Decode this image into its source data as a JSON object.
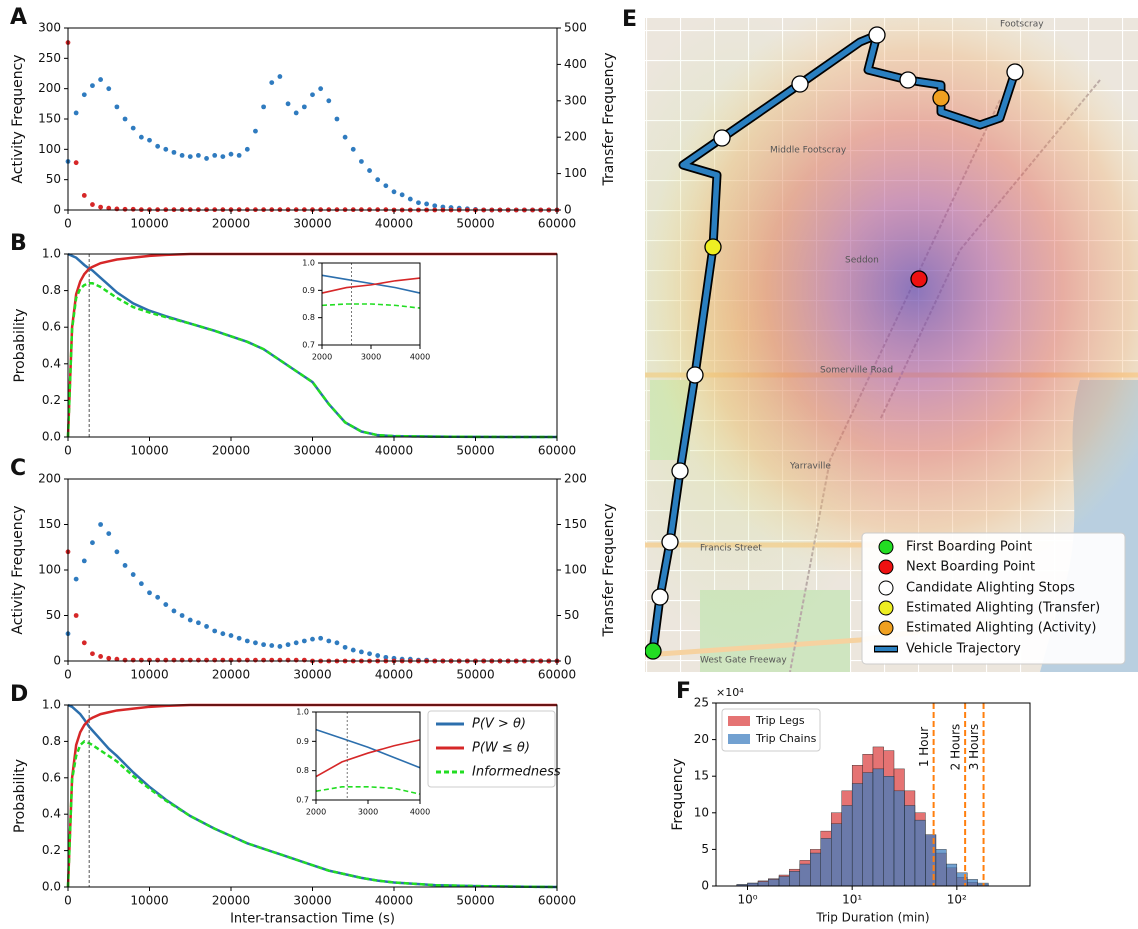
{
  "chart_data": [
    {
      "type": "scatter",
      "panel_label": "A",
      "x": [
        0,
        1000,
        2000,
        3000,
        4000,
        5000,
        6000,
        7000,
        8000,
        9000,
        10000,
        11000,
        12000,
        13000,
        14000,
        15000,
        16000,
        17000,
        18000,
        19000,
        20000,
        21000,
        22000,
        23000,
        24000,
        25000,
        26000,
        27000,
        28000,
        29000,
        30000,
        31000,
        32000,
        33000,
        34000,
        35000,
        36000,
        37000,
        38000,
        39000,
        40000,
        41000,
        42000,
        43000,
        44000,
        45000,
        46000,
        47000,
        48000,
        49000,
        50000,
        51000,
        52000,
        53000,
        54000,
        55000,
        56000,
        57000,
        58000,
        59000,
        60000
      ],
      "xlim": [
        0,
        60000
      ],
      "xticks": [
        0,
        10000,
        20000,
        30000,
        40000,
        50000,
        60000
      ],
      "ylim": [
        0,
        300
      ],
      "yticks": [
        0,
        50,
        100,
        150,
        200,
        250,
        300
      ],
      "y2lim": [
        0,
        500
      ],
      "y2ticks": [
        0,
        100,
        200,
        300,
        400,
        500
      ],
      "ylabel": "Activity Frequency",
      "y2label": "Transfer Frequency",
      "series": [
        {
          "color": "#2f7bbf",
          "values": [
            80,
            160,
            190,
            205,
            215,
            200,
            170,
            150,
            135,
            120,
            115,
            105,
            100,
            95,
            90,
            88,
            90,
            85,
            90,
            88,
            92,
            90,
            100,
            130,
            170,
            210,
            220,
            175,
            160,
            170,
            190,
            200,
            180,
            150,
            120,
            100,
            80,
            65,
            50,
            40,
            30,
            25,
            18,
            12,
            10,
            7,
            5,
            4,
            3,
            2,
            1,
            0,
            0,
            0,
            0,
            0,
            0,
            0,
            0,
            0,
            0
          ]
        },
        {
          "color": "#d62728",
          "axis": "y2",
          "values": [
            460,
            130,
            40,
            15,
            8,
            5,
            3,
            2,
            2,
            1,
            1,
            1,
            1,
            1,
            1,
            1,
            1,
            1,
            1,
            1,
            1,
            1,
            1,
            1,
            1,
            1,
            1,
            1,
            1,
            1,
            1,
            1,
            1,
            1,
            1,
            1,
            1,
            1,
            1,
            1,
            0,
            0,
            0,
            0,
            0,
            0,
            0,
            0,
            0,
            0,
            0,
            0,
            0,
            0,
            0,
            0,
            0,
            0,
            0,
            0,
            0
          ]
        }
      ]
    },
    {
      "type": "line",
      "panel_label": "B",
      "x": [
        0,
        500,
        1000,
        1500,
        2000,
        2600,
        3000,
        4000,
        5000,
        6000,
        8000,
        10000,
        12000,
        15000,
        18000,
        20000,
        22000,
        24000,
        26000,
        28000,
        30000,
        32000,
        34000,
        36000,
        38000,
        40000,
        45000,
        50000,
        55000,
        60000
      ],
      "xlim": [
        0,
        60000
      ],
      "xticks": [
        0,
        10000,
        20000,
        30000,
        40000,
        50000,
        60000
      ],
      "ylim": [
        0,
        1
      ],
      "yticks": [
        {
          "value": 0,
          "label": "0.0"
        },
        0.2,
        0.4,
        0.6,
        0.8,
        {
          "value": 1,
          "label": "1.0"
        }
      ],
      "ylabel": "Probability",
      "vline": 2600,
      "series": [
        {
          "color": "#2c6fad",
          "values": [
            1,
            0.99,
            0.98,
            0.96,
            0.94,
            0.92,
            0.91,
            0.87,
            0.83,
            0.79,
            0.73,
            0.69,
            0.66,
            0.62,
            0.58,
            0.55,
            0.52,
            0.48,
            0.42,
            0.36,
            0.3,
            0.18,
            0.08,
            0.03,
            0.01,
            0.005,
            0.002,
            0.001,
            0,
            0
          ]
        },
        {
          "color": "#d62728",
          "values": [
            0,
            0.6,
            0.78,
            0.85,
            0.89,
            0.92,
            0.93,
            0.95,
            0.96,
            0.97,
            0.98,
            0.99,
            0.995,
            1,
            1,
            1,
            1,
            1,
            1,
            1,
            1,
            1,
            1,
            1,
            1,
            1,
            1,
            1,
            1,
            1
          ]
        },
        {
          "color": "#22dd22",
          "dashed": true,
          "values": [
            0,
            0.59,
            0.76,
            0.81,
            0.83,
            0.84,
            0.84,
            0.82,
            0.79,
            0.76,
            0.71,
            0.68,
            0.655,
            0.62,
            0.58,
            0.55,
            0.52,
            0.48,
            0.42,
            0.36,
            0.3,
            0.18,
            0.08,
            0.03,
            0.01,
            0.005,
            0.002,
            0.001,
            0,
            0
          ]
        }
      ],
      "inset": {
        "x": [
          2000,
          2500,
          3000,
          3500,
          4000
        ],
        "xlim": [
          2000,
          4000
        ],
        "xticks": [
          2000,
          3000,
          4000
        ],
        "ylim": [
          0.7,
          1
        ],
        "yticks": [
          0.7,
          0.8,
          0.9,
          {
            "value": 1,
            "label": "1.0"
          }
        ],
        "vline": 2600,
        "series": [
          {
            "values": [
              0.955,
              0.94,
              0.925,
              0.91,
              0.89
            ]
          },
          {
            "values": [
              0.89,
              0.91,
              0.92,
              0.935,
              0.945
            ]
          },
          {
            "values": [
              0.845,
              0.85,
              0.85,
              0.845,
              0.835
            ]
          }
        ]
      }
    },
    {
      "type": "scatter",
      "panel_label": "C",
      "x": [
        0,
        1000,
        2000,
        3000,
        4000,
        5000,
        6000,
        7000,
        8000,
        9000,
        10000,
        11000,
        12000,
        13000,
        14000,
        15000,
        16000,
        17000,
        18000,
        19000,
        20000,
        21000,
        22000,
        23000,
        24000,
        25000,
        26000,
        27000,
        28000,
        29000,
        30000,
        31000,
        32000,
        33000,
        34000,
        35000,
        36000,
        37000,
        38000,
        39000,
        40000,
        41000,
        42000,
        43000,
        44000,
        45000,
        46000,
        47000,
        48000,
        49000,
        50000,
        51000,
        52000,
        53000,
        54000,
        55000,
        56000,
        57000,
        58000,
        59000,
        60000
      ],
      "xlim": [
        0,
        60000
      ],
      "xticks": [
        0,
        10000,
        20000,
        30000,
        40000,
        50000,
        60000
      ],
      "ylim": [
        0,
        200
      ],
      "yticks": [
        0,
        50,
        100,
        150,
        200
      ],
      "y2lim": [
        0,
        200
      ],
      "y2ticks": [
        0,
        50,
        100,
        150,
        200
      ],
      "ylabel": "Activity Frequency",
      "y2label": "Transfer Frequency",
      "series": [
        {
          "color": "#2f7bbf",
          "values": [
            30,
            90,
            110,
            130,
            150,
            140,
            120,
            105,
            95,
            85,
            75,
            70,
            62,
            55,
            50,
            45,
            42,
            38,
            33,
            30,
            28,
            25,
            22,
            20,
            18,
            17,
            16,
            18,
            20,
            22,
            24,
            25,
            22,
            20,
            15,
            12,
            10,
            8,
            6,
            4,
            3,
            2,
            2,
            1,
            1,
            0,
            0,
            0,
            0,
            0,
            0,
            0,
            0,
            0,
            0,
            0,
            0,
            0,
            0,
            0,
            0
          ]
        },
        {
          "color": "#d62728",
          "axis": "y2",
          "values": [
            120,
            50,
            20,
            8,
            5,
            3,
            2,
            1,
            1,
            1,
            1,
            1,
            1,
            1,
            1,
            1,
            1,
            1,
            1,
            1,
            1,
            1,
            1,
            1,
            1,
            1,
            1,
            1,
            1,
            1,
            0,
            0,
            0,
            0,
            0,
            0,
            0,
            0,
            0,
            0,
            0,
            0,
            0,
            0,
            0,
            0,
            0,
            0,
            0,
            0,
            0,
            0,
            0,
            0,
            0,
            0,
            0,
            0,
            0,
            0,
            0
          ]
        }
      ]
    },
    {
      "type": "line",
      "panel_label": "D",
      "x": [
        0,
        500,
        1000,
        1500,
        2000,
        2600,
        3000,
        4000,
        5000,
        6000,
        8000,
        10000,
        12000,
        15000,
        18000,
        20000,
        22000,
        24000,
        26000,
        28000,
        30000,
        32000,
        34000,
        36000,
        38000,
        40000,
        45000,
        50000,
        55000,
        60000
      ],
      "xlim": [
        0,
        60000
      ],
      "xticks": [
        0,
        10000,
        20000,
        30000,
        40000,
        50000,
        60000
      ],
      "ylim": [
        0,
        1
      ],
      "yticks": [
        {
          "value": 0,
          "label": "0.0"
        },
        0.2,
        0.4,
        0.6,
        0.8,
        {
          "value": 1,
          "label": "1.0"
        }
      ],
      "ylabel": "Probability",
      "xlabel": "Inter-transaction Time (s)",
      "vline": 2600,
      "legend": "upper right",
      "series": [
        {
          "name": "P(V > θ)",
          "color": "#2c6fad",
          "values": [
            1,
            0.99,
            0.97,
            0.95,
            0.92,
            0.88,
            0.86,
            0.81,
            0.76,
            0.72,
            0.63,
            0.55,
            0.48,
            0.39,
            0.32,
            0.28,
            0.24,
            0.21,
            0.18,
            0.15,
            0.12,
            0.09,
            0.07,
            0.05,
            0.035,
            0.025,
            0.01,
            0.005,
            0.002,
            0
          ]
        },
        {
          "name": "P(W ≤ θ)",
          "color": "#d62728",
          "values": [
            0,
            0.6,
            0.78,
            0.85,
            0.89,
            0.92,
            0.93,
            0.95,
            0.96,
            0.97,
            0.98,
            0.99,
            0.995,
            1,
            1,
            1,
            1,
            1,
            1,
            1,
            1,
            1,
            1,
            1,
            1,
            1,
            1,
            1,
            1,
            1
          ]
        },
        {
          "name": "Informedness",
          "color": "#22dd22",
          "dashed": true,
          "values": [
            0,
            0.59,
            0.72,
            0.78,
            0.8,
            0.79,
            0.78,
            0.75,
            0.72,
            0.69,
            0.61,
            0.54,
            0.475,
            0.39,
            0.32,
            0.28,
            0.24,
            0.21,
            0.18,
            0.15,
            0.12,
            0.09,
            0.07,
            0.05,
            0.035,
            0.025,
            0.01,
            0.005,
            0.002,
            0
          ]
        }
      ],
      "inset": {
        "x": [
          2000,
          2500,
          3000,
          3500,
          4000
        ],
        "xlim": [
          2000,
          4000
        ],
        "xticks": [
          2000,
          3000,
          4000
        ],
        "ylim": [
          0.7,
          1
        ],
        "yticks": [
          0.7,
          0.8,
          0.9,
          {
            "value": 1,
            "label": "1.0"
          }
        ],
        "vline": 2600,
        "series": [
          {
            "values": [
              0.94,
              0.91,
              0.88,
              0.845,
              0.81
            ]
          },
          {
            "values": [
              0.78,
              0.83,
              0.86,
              0.885,
              0.905
            ]
          },
          {
            "values": [
              0.73,
              0.745,
              0.745,
              0.74,
              0.72
            ]
          }
        ]
      }
    },
    {
      "type": "histogram",
      "panel_label": "F",
      "bins": [
        0.79,
        1,
        1.26,
        1.58,
        2,
        2.51,
        3.16,
        3.98,
        5.01,
        6.31,
        7.94,
        10,
        12.6,
        15.8,
        20,
        25.1,
        31.6,
        39.8,
        50.1,
        63.1,
        79.4,
        100,
        126,
        158,
        200,
        251
      ],
      "xscale": "log",
      "xlim": [
        0.5,
        500
      ],
      "xticks": [
        {
          "value": 1,
          "label": "10⁰"
        },
        {
          "value": 10,
          "label": "10¹"
        },
        {
          "value": 100,
          "label": "10²"
        }
      ],
      "ylim": [
        0,
        25
      ],
      "yticks": [
        0,
        5,
        10,
        15,
        20,
        25
      ],
      "y_multiplier": "×10⁴",
      "xlabel": "Trip Duration (min)",
      "ylabel": "Frequency",
      "legend": "upper left",
      "vline_color": "#ff7f0e",
      "vlines": [
        {
          "value": 60,
          "label": "1 Hour"
        },
        {
          "value": 120,
          "label": "2 Hours"
        },
        {
          "value": 180,
          "label": "3 Hours"
        }
      ],
      "series": [
        {
          "name": "Trip Legs",
          "color": "#e05a5a",
          "values": [
            0.2,
            0.4,
            0.7,
            1,
            1.5,
            2.3,
            3.5,
            5,
            7.5,
            10,
            13,
            16.5,
            18,
            19,
            18.5,
            16,
            13,
            10,
            7,
            4.5,
            2.5,
            1.2,
            0.5,
            0.2
          ]
        },
        {
          "name": "Trip Chains",
          "color": "#3c7dbf",
          "values": [
            0.2,
            0.4,
            0.6,
            0.9,
            1.3,
            2,
            3,
            4.5,
            6.5,
            8.5,
            11,
            14,
            15.5,
            16,
            15,
            13,
            11,
            9,
            7,
            5,
            3,
            1.8,
            0.9,
            0.4
          ]
        }
      ]
    }
  ],
  "map": {
    "panel_label": "E",
    "labels": [
      "Footscray",
      "Middle Footscray",
      "Seddon",
      "Somerville Road",
      "Yarraville",
      "Francis Street",
      "West Gate Freeway"
    ],
    "legend": [
      "First Boarding Point",
      "Next Boarding Point",
      "Candidate Alighting Stops",
      "Estimated Alighting (Transfer)",
      "Estimated Alighting (Activity)",
      "Vehicle Trajectory"
    ]
  }
}
